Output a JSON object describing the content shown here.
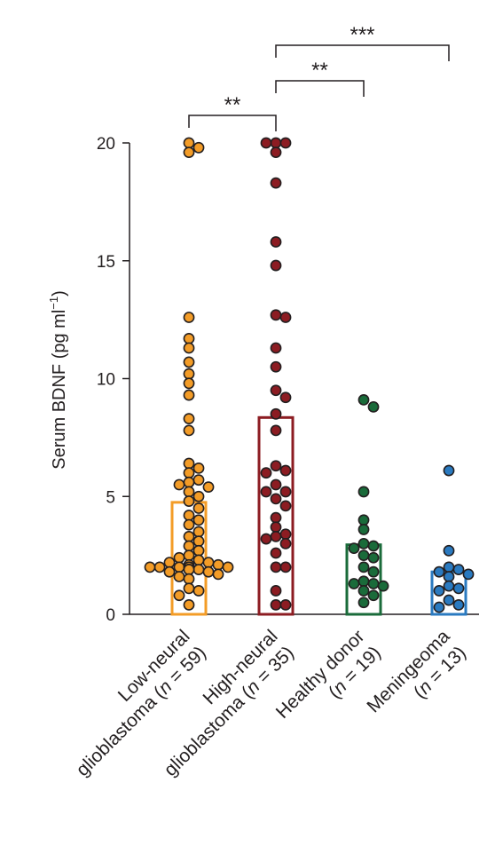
{
  "chart_data": {
    "type": "bar",
    "title": "",
    "xlabel": "",
    "ylabel": "Serum BDNF (pg ml",
    "ylabel_superscript": "−1",
    "ylabel_close": ")",
    "ylim": [
      0,
      20
    ],
    "yticks": [
      "0",
      "5",
      "10",
      "15",
      "20"
    ],
    "grid": false,
    "categories": [
      {
        "line1": "Low-neural",
        "line2": "glioblastoma (",
        "n_symbol": "n",
        "n_text": " = 59)"
      },
      {
        "line1": "High-neural",
        "line2": "glioblastoma (",
        "n_symbol": "n",
        "n_text": " = 35)"
      },
      {
        "line1": "Healthy donor",
        "line2": "(",
        "n_symbol": "n",
        "n_text": " = 19)"
      },
      {
        "line1": "Meningeoma",
        "line2": "(",
        "n_symbol": "n",
        "n_text": " = 13)"
      }
    ],
    "colors": [
      "#f39c27",
      "#8c1c22",
      "#1a6b3a",
      "#2a7ac0"
    ],
    "bar_means": [
      4.75,
      8.35,
      2.95,
      1.8
    ],
    "points": [
      [
        20.0,
        19.8,
        19.6,
        12.6,
        11.7,
        11.3,
        10.7,
        10.2,
        9.8,
        9.3,
        8.3,
        7.8,
        6.4,
        6.2,
        6.0,
        5.7,
        5.6,
        5.5,
        5.4,
        5.2,
        5.0,
        4.8,
        4.5,
        4.2,
        4.0,
        3.8,
        3.5,
        3.3,
        3.1,
        2.9,
        2.7,
        2.5,
        2.4,
        2.3,
        2.2,
        2.1,
        2.0,
        2.0,
        2.0,
        2.0,
        1.9,
        1.9,
        1.9,
        1.8,
        1.7,
        1.6,
        1.5,
        1.1,
        1.0,
        0.8,
        0.4,
        2.1,
        2.0,
        1.9,
        2.0,
        1.8,
        2.2,
        1.9,
        2.0
      ],
      [
        20.0,
        20.0,
        20.0,
        19.6,
        18.3,
        15.8,
        14.8,
        12.7,
        12.6,
        11.3,
        10.5,
        9.5,
        9.2,
        8.5,
        7.8,
        6.3,
        6.1,
        6.0,
        5.5,
        5.2,
        5.2,
        4.9,
        4.6,
        4.1,
        3.7,
        3.4,
        3.3,
        3.2,
        3.0,
        2.6,
        2.0,
        2.0,
        1.0,
        0.4,
        0.4
      ],
      [
        9.1,
        8.8,
        5.2,
        4.0,
        3.6,
        3.0,
        2.9,
        2.8,
        2.5,
        2.4,
        2.0,
        1.8,
        1.4,
        1.3,
        1.3,
        1.2,
        1.0,
        0.8,
        0.5
      ],
      [
        6.1,
        2.7,
        2.0,
        1.9,
        1.8,
        1.7,
        1.6,
        1.2,
        1.1,
        1.0,
        0.6,
        0.4,
        0.3
      ]
    ],
    "significance": [
      {
        "from": 0,
        "to": 1,
        "label": "**"
      },
      {
        "from": 1,
        "to": 2,
        "label": "**"
      },
      {
        "from": 1,
        "to": 3,
        "label": "***"
      }
    ]
  }
}
